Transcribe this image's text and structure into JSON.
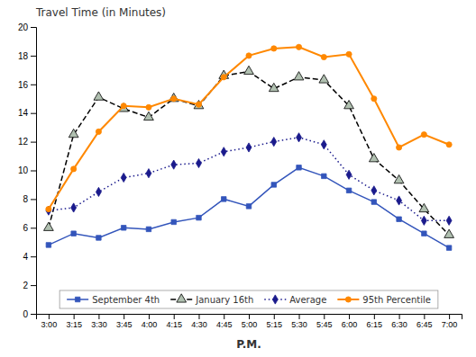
{
  "chart_data": {
    "type": "line",
    "title": "Travel Time (in Minutes)",
    "x_label": "P.M.",
    "categories": [
      "3:00",
      "3:15",
      "3:30",
      "3:45",
      "4:00",
      "4:15",
      "4:30",
      "4:45",
      "5:00",
      "5:15",
      "5:30",
      "5:45",
      "6:00",
      "6:15",
      "6:30",
      "6:45",
      "7:00"
    ],
    "series": [
      {
        "name": "September 4th",
        "color": "#3355bb",
        "marker": "square",
        "line_style": "solid",
        "values": [
          4.8,
          5.6,
          5.3,
          6.0,
          5.9,
          6.4,
          6.7,
          8.0,
          7.5,
          9.0,
          10.2,
          9.6,
          8.6,
          7.8,
          6.6,
          5.6,
          4.6
        ]
      },
      {
        "name": "January 16th",
        "color": "#000000",
        "marker": "triangle",
        "line_style": "dashed",
        "values": [
          6.0,
          12.5,
          15.1,
          14.3,
          13.7,
          15.0,
          14.5,
          16.6,
          16.9,
          15.7,
          16.5,
          16.3,
          14.5,
          10.8,
          9.3,
          7.3,
          5.5
        ]
      },
      {
        "name": "Average",
        "color": "#1a1a8c",
        "marker": "diamond",
        "line_style": "dotted",
        "values": [
          7.2,
          7.4,
          8.5,
          9.5,
          9.8,
          10.4,
          10.5,
          11.3,
          11.6,
          12.0,
          12.3,
          11.8,
          9.7,
          8.6,
          7.9,
          6.5,
          6.5
        ]
      },
      {
        "name": "95th Percentile",
        "color": "#ff8800",
        "marker": "circle",
        "line_style": "solid",
        "values": [
          7.3,
          10.1,
          12.7,
          14.5,
          14.4,
          15.0,
          14.6,
          16.5,
          18.0,
          18.5,
          18.6,
          17.9,
          18.1,
          15.0,
          11.6,
          12.5,
          11.8
        ]
      }
    ],
    "ylim": [
      0,
      20
    ],
    "yticks": [
      0,
      2,
      4,
      6,
      8,
      10,
      12,
      14,
      16,
      18,
      20
    ],
    "grid": false,
    "legend": "bottom"
  }
}
